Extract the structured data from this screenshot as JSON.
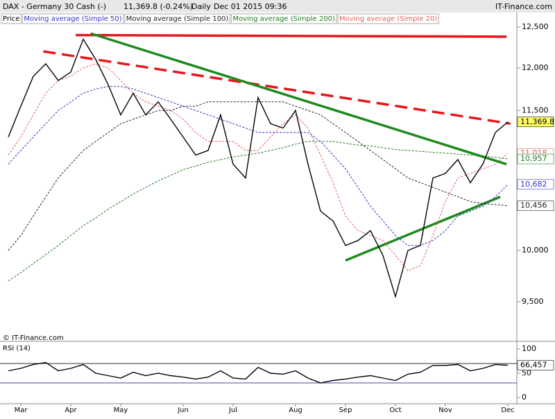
{
  "header": {
    "title": "DAX - Germany 30 Cash (-)",
    "quote": "11,369.8 (-0.24%)",
    "period": "Daily",
    "timestamp": "Dec 01 2015 09:36",
    "brand": "IT-Finance.com",
    "watermark": "© IT-Finance.com"
  },
  "chart_data": [
    {
      "type": "line",
      "log_scale": true,
      "categories": [
        null,
        "Mar",
        null,
        null,
        null,
        "Apr",
        null,
        null,
        null,
        "May",
        null,
        null,
        null,
        null,
        "Jun",
        null,
        null,
        null,
        "Jul",
        null,
        null,
        null,
        null,
        "Aug",
        null,
        null,
        null,
        "Sep",
        null,
        null,
        null,
        "Oct",
        null,
        null,
        null,
        "Nov",
        null,
        null,
        null,
        null,
        "Dec"
      ],
      "ylim": [
        9145,
        12552
      ],
      "yticks": [
        {
          "value": 9500,
          "label": "9,500"
        },
        {
          "value": 10000,
          "label": "10,000"
        },
        {
          "value": 11500,
          "label": "11,500"
        },
        {
          "value": 12000,
          "label": "12,000"
        },
        {
          "value": 12500,
          "label": "12,500"
        }
      ],
      "series": [
        {
          "name": "Price",
          "color": "#000000",
          "style": "solid",
          "last_label": "11,369.8",
          "values": [
            11200,
            11550,
            11900,
            12050,
            11850,
            11950,
            12350,
            12100,
            11800,
            11450,
            11700,
            11450,
            11600,
            11400,
            11200,
            11000,
            11050,
            11450,
            10900,
            10750,
            11650,
            11350,
            11300,
            11500,
            10900,
            10400,
            10300,
            10050,
            10100,
            10200,
            9950,
            9550,
            10000,
            10050,
            10750,
            10800,
            10950,
            10700,
            10900,
            11250,
            11369.8
          ]
        },
        {
          "name": "Moving average (Simple 50)",
          "color": "#3333cc",
          "style": "dashed",
          "last_label": "10,682",
          "values": [
            10900,
            11050,
            11200,
            11350,
            11500,
            11600,
            11700,
            11750,
            11780,
            11780,
            11750,
            11700,
            11650,
            11600,
            11550,
            11500,
            11450,
            11400,
            11350,
            11300,
            11250,
            11250,
            11250,
            11250,
            11250,
            11150,
            11000,
            10850,
            10650,
            10450,
            10300,
            10150,
            10050,
            10050,
            10100,
            10200,
            10350,
            10400,
            10450,
            10550,
            10682
          ]
        },
        {
          "name": "Moving average (Simple 100)",
          "color": "#222222",
          "style": "dashed",
          "last_label": "10,456",
          "values": [
            10000,
            10150,
            10350,
            10550,
            10750,
            10900,
            11050,
            11150,
            11250,
            11350,
            11400,
            11450,
            11500,
            11500,
            11550,
            11550,
            11600,
            11600,
            11600,
            11600,
            11600,
            11600,
            11600,
            11550,
            11500,
            11450,
            11350,
            11250,
            11150,
            11050,
            10950,
            10850,
            10750,
            10700,
            10650,
            10600,
            10550,
            10500,
            10480,
            10470,
            10456
          ]
        },
        {
          "name": "Moving average (Simple 200)",
          "color": "#1f7a1f",
          "style": "dashed",
          "last_label": "10,957",
          "values": [
            9700,
            9780,
            9870,
            9960,
            10050,
            10150,
            10250,
            10330,
            10420,
            10500,
            10580,
            10650,
            10720,
            10780,
            10840,
            10880,
            10920,
            10950,
            10980,
            11000,
            11020,
            11050,
            11080,
            11120,
            11150,
            11150,
            11150,
            11130,
            11110,
            11100,
            11080,
            11060,
            11050,
            11040,
            11030,
            11020,
            11010,
            11000,
            10990,
            10975,
            10957
          ]
        },
        {
          "name": "Moving average (Simple 20)",
          "color": "#e06060",
          "style": "dashed",
          "last_label": "11,018",
          "values": [
            11000,
            11200,
            11450,
            11700,
            11850,
            11900,
            12000,
            12050,
            12000,
            11850,
            11700,
            11600,
            11550,
            11500,
            11400,
            11250,
            11150,
            11150,
            11150,
            11050,
            11050,
            11200,
            11350,
            11450,
            11300,
            11000,
            10700,
            10350,
            10200,
            10150,
            10100,
            9950,
            9800,
            9850,
            10150,
            10500,
            10750,
            10800,
            10850,
            10900,
            11018
          ]
        }
      ],
      "trendlines": [
        {
          "color": "#e8141c",
          "style": "solid",
          "start": [
            5.4,
            12400
          ],
          "end": [
            39.9,
            12380
          ]
        },
        {
          "color": "#e8141c",
          "style": "dashed",
          "start": [
            2.8,
            12200
          ],
          "end": [
            40.2,
            11350
          ]
        },
        {
          "color": "#1e8a1e",
          "style": "solid",
          "start": [
            6.6,
            12420
          ],
          "end": [
            39.9,
            10900
          ]
        },
        {
          "color": "#1e8a1e",
          "style": "solid",
          "start": [
            27.0,
            9900
          ],
          "end": [
            39.4,
            10550
          ]
        }
      ]
    },
    {
      "type": "line",
      "title": "RSI (14)",
      "ylim": [
        0,
        100
      ],
      "yticks": [
        0,
        50,
        100
      ],
      "levels": [
        30,
        70
      ],
      "series": [
        {
          "name": "RSI",
          "color": "#000000",
          "style": "solid",
          "last_label": "66,457",
          "values": [
            55,
            60,
            68,
            72,
            55,
            60,
            68,
            50,
            45,
            40,
            52,
            45,
            50,
            45,
            42,
            38,
            42,
            55,
            40,
            38,
            62,
            50,
            48,
            55,
            40,
            30,
            35,
            38,
            42,
            45,
            40,
            35,
            48,
            52,
            66,
            66,
            68,
            55,
            60,
            68,
            66.457
          ]
        }
      ]
    }
  ]
}
